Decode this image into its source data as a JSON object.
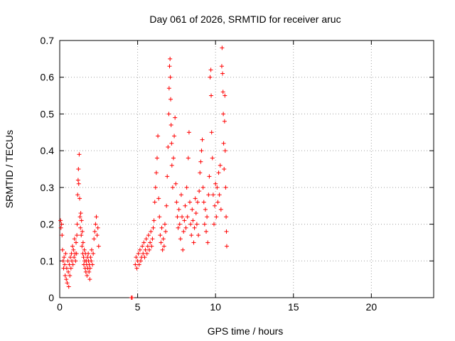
{
  "chart_data": {
    "type": "scatter",
    "title": "Day 061 of 2026, SRMTID for receiver aruc",
    "xlabel": "GPS time / hours",
    "ylabel": "SRMTID / TECUs",
    "xlim": [
      0,
      24
    ],
    "ylim": [
      0,
      0.7
    ],
    "xticks": [
      0,
      5,
      10,
      15,
      20
    ],
    "xtick_labels": [
      "0",
      "5",
      "10",
      "15",
      "20"
    ],
    "yticks": [
      0,
      0.1,
      0.2,
      0.3,
      0.4,
      0.5,
      0.6,
      0.7
    ],
    "ytick_labels": [
      "0",
      "0.1",
      "0.2",
      "0.3",
      "0.4",
      "0.5",
      "0.6",
      "0.7"
    ],
    "grid": true,
    "marker": "plus",
    "color": "#ff0000",
    "series": [
      {
        "name": "SRMTID",
        "points": [
          [
            0.05,
            0.21
          ],
          [
            0.08,
            0.19
          ],
          [
            0.12,
            0.2
          ],
          [
            0.15,
            0.17
          ],
          [
            0.18,
            0.13
          ],
          [
            0.22,
            0.1
          ],
          [
            0.25,
            0.08
          ],
          [
            0.28,
            0.11
          ],
          [
            0.32,
            0.09
          ],
          [
            0.35,
            0.06
          ],
          [
            0.38,
            0.12
          ],
          [
            0.42,
            0.05
          ],
          [
            0.45,
            0.08
          ],
          [
            0.48,
            0.04
          ],
          [
            0.52,
            0.1
          ],
          [
            0.55,
            0.07
          ],
          [
            0.58,
            0.03
          ],
          [
            0.62,
            0.09
          ],
          [
            0.65,
            0.06
          ],
          [
            0.68,
            0.11
          ],
          [
            0.72,
            0.08
          ],
          [
            0.75,
            0.12
          ],
          [
            0.78,
            0.1
          ],
          [
            0.82,
            0.14
          ],
          [
            0.85,
            0.09
          ],
          [
            0.88,
            0.13
          ],
          [
            0.92,
            0.11
          ],
          [
            0.95,
            0.16
          ],
          [
            0.98,
            0.12
          ],
          [
            1.02,
            0.1
          ],
          [
            1.05,
            0.15
          ],
          [
            1.08,
            0.12
          ],
          [
            1.1,
            0.17
          ],
          [
            1.12,
            0.2
          ],
          [
            1.15,
            0.28
          ],
          [
            1.18,
            0.32
          ],
          [
            1.2,
            0.35
          ],
          [
            1.22,
            0.31
          ],
          [
            1.25,
            0.39
          ],
          [
            1.28,
            0.27
          ],
          [
            1.3,
            0.22
          ],
          [
            1.33,
            0.19
          ],
          [
            1.35,
            0.23
          ],
          [
            1.38,
            0.17
          ],
          [
            1.4,
            0.21
          ],
          [
            1.43,
            0.14
          ],
          [
            1.45,
            0.18
          ],
          [
            1.48,
            0.12
          ],
          [
            1.5,
            0.15
          ],
          [
            1.53,
            0.11
          ],
          [
            1.55,
            0.09
          ],
          [
            1.58,
            0.13
          ],
          [
            1.6,
            0.1
          ],
          [
            1.63,
            0.08
          ],
          [
            1.65,
            0.12
          ],
          [
            1.68,
            0.07
          ],
          [
            1.7,
            0.1
          ],
          [
            1.73,
            0.09
          ],
          [
            1.75,
            0.06
          ],
          [
            1.78,
            0.11
          ],
          [
            1.8,
            0.08
          ],
          [
            1.83,
            0.12
          ],
          [
            1.85,
            0.1
          ],
          [
            1.88,
            0.07
          ],
          [
            1.9,
            0.09
          ],
          [
            1.93,
            0.05
          ],
          [
            1.95,
            0.08
          ],
          [
            1.98,
            0.11
          ],
          [
            2.02,
            0.1
          ],
          [
            2.05,
            0.13
          ],
          [
            2.1,
            0.09
          ],
          [
            2.15,
            0.12
          ],
          [
            2.2,
            0.16
          ],
          [
            2.25,
            0.18
          ],
          [
            2.3,
            0.2
          ],
          [
            2.35,
            0.22
          ],
          [
            2.4,
            0.17
          ],
          [
            2.45,
            0.19
          ],
          [
            2.5,
            0.14
          ],
          [
            4.6,
            0.0
          ],
          [
            4.65,
            0.0
          ],
          [
            4.85,
            0.09
          ],
          [
            4.9,
            0.11
          ],
          [
            4.95,
            0.08
          ],
          [
            5.0,
            0.1
          ],
          [
            5.05,
            0.12
          ],
          [
            5.1,
            0.09
          ],
          [
            5.15,
            0.13
          ],
          [
            5.2,
            0.1
          ],
          [
            5.25,
            0.11
          ],
          [
            5.3,
            0.14
          ],
          [
            5.35,
            0.12
          ],
          [
            5.4,
            0.15
          ],
          [
            5.45,
            0.11
          ],
          [
            5.5,
            0.13
          ],
          [
            5.55,
            0.16
          ],
          [
            5.6,
            0.12
          ],
          [
            5.65,
            0.14
          ],
          [
            5.7,
            0.17
          ],
          [
            5.75,
            0.13
          ],
          [
            5.8,
            0.15
          ],
          [
            5.85,
            0.18
          ],
          [
            5.9,
            0.14
          ],
          [
            5.95,
            0.16
          ],
          [
            6.0,
            0.19
          ],
          [
            6.05,
            0.21
          ],
          [
            6.1,
            0.26
          ],
          [
            6.15,
            0.3
          ],
          [
            6.2,
            0.34
          ],
          [
            6.25,
            0.38
          ],
          [
            6.3,
            0.44
          ],
          [
            6.35,
            0.27
          ],
          [
            6.4,
            0.22
          ],
          [
            6.45,
            0.17
          ],
          [
            6.5,
            0.15
          ],
          [
            6.55,
            0.19
          ],
          [
            6.6,
            0.13
          ],
          [
            6.65,
            0.16
          ],
          [
            6.7,
            0.14
          ],
          [
            6.75,
            0.2
          ],
          [
            6.8,
            0.18
          ],
          [
            6.85,
            0.25
          ],
          [
            6.9,
            0.33
          ],
          [
            6.95,
            0.41
          ],
          [
            7.0,
            0.5
          ],
          [
            7.02,
            0.57
          ],
          [
            7.05,
            0.63
          ],
          [
            7.08,
            0.65
          ],
          [
            7.1,
            0.6
          ],
          [
            7.12,
            0.54
          ],
          [
            7.15,
            0.47
          ],
          [
            7.18,
            0.42
          ],
          [
            7.2,
            0.36
          ],
          [
            7.25,
            0.3
          ],
          [
            7.3,
            0.38
          ],
          [
            7.35,
            0.44
          ],
          [
            7.4,
            0.49
          ],
          [
            7.45,
            0.31
          ],
          [
            7.5,
            0.26
          ],
          [
            7.55,
            0.22
          ],
          [
            7.6,
            0.19
          ],
          [
            7.65,
            0.24
          ],
          [
            7.7,
            0.2
          ],
          [
            7.75,
            0.16
          ],
          [
            7.8,
            0.28
          ],
          [
            7.85,
            0.22
          ],
          [
            7.9,
            0.13
          ],
          [
            7.95,
            0.18
          ],
          [
            8.0,
            0.21
          ],
          [
            8.05,
            0.25
          ],
          [
            8.1,
            0.19
          ],
          [
            8.15,
            0.3
          ],
          [
            8.2,
            0.22
          ],
          [
            8.25,
            0.38
          ],
          [
            8.3,
            0.45
          ],
          [
            8.35,
            0.26
          ],
          [
            8.4,
            0.2
          ],
          [
            8.45,
            0.17
          ],
          [
            8.5,
            0.24
          ],
          [
            8.55,
            0.21
          ],
          [
            8.6,
            0.15
          ],
          [
            8.65,
            0.19
          ],
          [
            8.7,
            0.27
          ],
          [
            8.75,
            0.23
          ],
          [
            8.8,
            0.2
          ],
          [
            8.85,
            0.26
          ],
          [
            8.9,
            0.17
          ],
          [
            8.95,
            0.29
          ],
          [
            9.0,
            0.34
          ],
          [
            9.05,
            0.37
          ],
          [
            9.1,
            0.4
          ],
          [
            9.15,
            0.43
          ],
          [
            9.2,
            0.3
          ],
          [
            9.25,
            0.26
          ],
          [
            9.3,
            0.2
          ],
          [
            9.35,
            0.24
          ],
          [
            9.4,
            0.18
          ],
          [
            9.45,
            0.22
          ],
          [
            9.5,
            0.15
          ],
          [
            9.55,
            0.28
          ],
          [
            9.6,
            0.33
          ],
          [
            9.65,
            0.6
          ],
          [
            9.7,
            0.62
          ],
          [
            9.72,
            0.55
          ],
          [
            9.75,
            0.45
          ],
          [
            9.8,
            0.38
          ],
          [
            9.85,
            0.28
          ],
          [
            9.9,
            0.2
          ],
          [
            9.95,
            0.25
          ],
          [
            10.0,
            0.31
          ],
          [
            10.05,
            0.22
          ],
          [
            10.1,
            0.3
          ],
          [
            10.15,
            0.26
          ],
          [
            10.2,
            0.34
          ],
          [
            10.25,
            0.28
          ],
          [
            10.3,
            0.36
          ],
          [
            10.35,
            0.24
          ],
          [
            10.4,
            0.63
          ],
          [
            10.42,
            0.68
          ],
          [
            10.45,
            0.61
          ],
          [
            10.48,
            0.56
          ],
          [
            10.5,
            0.5
          ],
          [
            10.52,
            0.42
          ],
          [
            10.55,
            0.35
          ],
          [
            10.58,
            0.48
          ],
          [
            10.6,
            0.55
          ],
          [
            10.62,
            0.4
          ],
          [
            10.65,
            0.3
          ],
          [
            10.68,
            0.22
          ],
          [
            10.7,
            0.18
          ],
          [
            10.72,
            0.14
          ]
        ]
      }
    ]
  }
}
